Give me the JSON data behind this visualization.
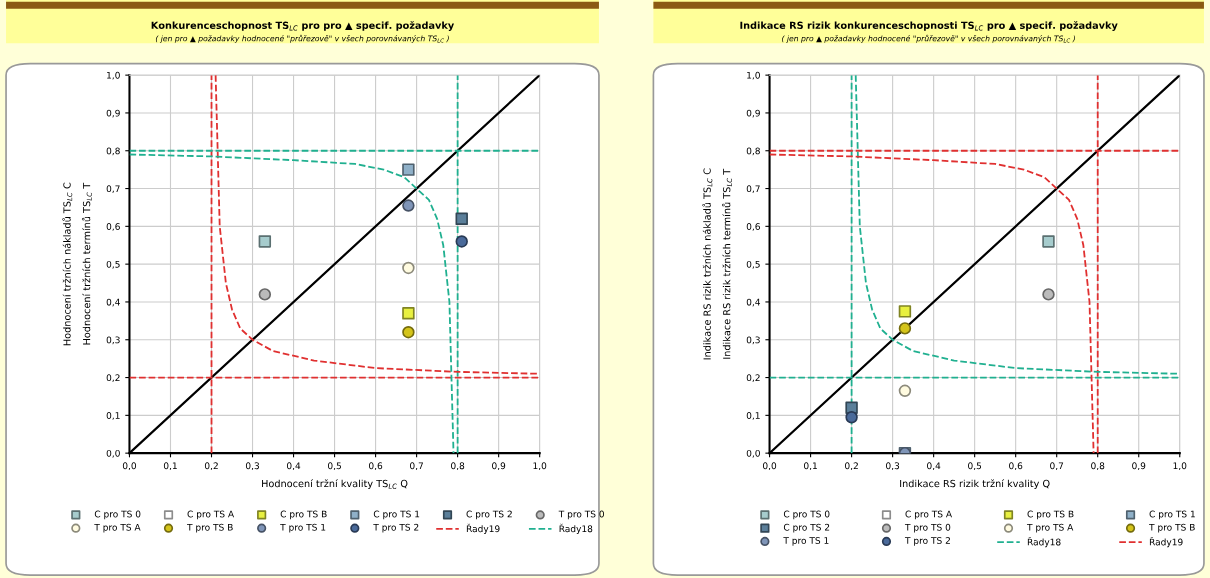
{
  "chart_data": [
    {
      "type": "scatter",
      "title": "Konkurenceschopnost TS$_{LC}$ pro pro ▲ specif. požadavky",
      "subtitle": "( jen pro ▲ požadavky hodnocené \"průřezově\" v všech porovnávaných TS$_{LC}$ )",
      "xlabel": "Hodnocení tržní kvality TS$_{LC}$ Q",
      "ylabel": "Hodnocení tržních nákladů TS$_{LC}$ C\nHodnocení tržních termínů TS$_{LC}$ T",
      "xlim": [
        0,
        1
      ],
      "ylim": [
        0,
        1
      ],
      "xticks": [
        {
          "value": 0,
          "label": "0,0"
        },
        {
          "value": 0.1,
          "label": "0,1"
        },
        {
          "value": 0.2,
          "label": "0,2"
        },
        {
          "value": 0.3,
          "label": "0,3"
        },
        {
          "value": 0.4,
          "label": "0,4"
        },
        {
          "value": 0.5,
          "label": "0,5"
        },
        {
          "value": 0.6,
          "label": "0,6"
        },
        {
          "value": 0.7,
          "label": "0,7"
        },
        {
          "value": 0.8,
          "label": "0,8"
        },
        {
          "value": 0.9,
          "label": "0,9"
        },
        {
          "value": 1,
          "label": "1,0"
        }
      ],
      "yticks": [
        {
          "value": 0,
          "label": "0,0"
        },
        {
          "value": 0.1,
          "label": "0,1"
        },
        {
          "value": 0.2,
          "label": "0,2"
        },
        {
          "value": 0.3,
          "label": "0,3"
        },
        {
          "value": 0.4,
          "label": "0,4"
        },
        {
          "value": 0.5,
          "label": "0,5"
        },
        {
          "value": 0.6,
          "label": "0,6"
        },
        {
          "value": 0.7,
          "label": "0,7"
        },
        {
          "value": 0.8,
          "label": "0,8"
        },
        {
          "value": 0.9,
          "label": "0,9"
        },
        {
          "value": 1,
          "label": "1,0"
        }
      ],
      "grid": true,
      "legend": "bottom",
      "series": [
        {
          "type": "line",
          "color": "#000000",
          "x": [
            0,
            1
          ],
          "values": [
            0,
            1
          ],
          "line_style": "solid",
          "marker": "none"
        },
        {
          "type": "line",
          "color": "#e03030",
          "x": [
            0.2,
            0.2
          ],
          "values": [
            0,
            1
          ],
          "line_style": "dashed",
          "marker": "none"
        },
        {
          "type": "line",
          "color": "#e03030",
          "x": [
            0,
            1
          ],
          "values": [
            0.2,
            0.2
          ],
          "line_style": "dashed",
          "marker": "none"
        },
        {
          "type": "line",
          "color": "#20b090",
          "x": [
            0.8,
            0.8
          ],
          "values": [
            0,
            1
          ],
          "line_style": "dashed",
          "marker": "none"
        },
        {
          "type": "line",
          "color": "#20b090",
          "x": [
            0,
            1
          ],
          "values": [
            0.8,
            0.8
          ],
          "line_style": "dashed",
          "marker": "none"
        },
        {
          "name": "C pro TS 0",
          "marker": "square",
          "color": "#a6cccd",
          "x": [
            0.33
          ],
          "values": [
            0.56
          ]
        },
        {
          "name": "C pro TS A",
          "marker": "square",
          "color": "#ffffff",
          "x": [
            null
          ],
          "values": [
            null
          ]
        },
        {
          "name": "C pro TS B",
          "marker": "square",
          "color": "#e8f040",
          "x": [
            0.68
          ],
          "values": [
            0.37
          ]
        },
        {
          "name": "C pro TS 1",
          "marker": "square",
          "color": "#8fb0c8",
          "x": [
            0.68
          ],
          "values": [
            0.75
          ]
        },
        {
          "name": "C pro TS 2",
          "marker": "square",
          "color": "#5b7f9a",
          "x": [
            0.81
          ],
          "values": [
            0.62
          ]
        },
        {
          "name": "T pro TS 0",
          "marker": "circle",
          "color": "#bbbbbb",
          "x": [
            0.33
          ],
          "values": [
            0.42
          ]
        },
        {
          "name": "T pro TS A",
          "marker": "circle",
          "color": "#fffbe0",
          "x": [
            0.68
          ],
          "values": [
            0.49
          ]
        },
        {
          "name": "T pro TS B",
          "marker": "circle",
          "color": "#d4c41a",
          "x": [
            0.68
          ],
          "values": [
            0.32
          ]
        },
        {
          "name": "T pro TS 1",
          "marker": "circle",
          "color": "#7f95b8",
          "x": [
            0.68
          ],
          "values": [
            0.655
          ]
        },
        {
          "name": "T pro TS 2",
          "marker": "circle",
          "color": "#4a6a9a",
          "x": [
            0.81
          ],
          "values": [
            0.56
          ]
        },
        {
          "name": "Řady19",
          "type": "line",
          "color": "#e03030",
          "line_style": "dashed",
          "marker": "none",
          "x": [
            0.21,
            0.215,
            0.22,
            0.235,
            0.25,
            0.27,
            0.3,
            0.35,
            0.45,
            0.6,
            0.8,
            1.0
          ],
          "values": [
            1.0,
            0.8,
            0.6,
            0.45,
            0.38,
            0.33,
            0.3,
            0.27,
            0.245,
            0.225,
            0.215,
            0.21
          ]
        },
        {
          "name": "Řady18",
          "type": "line",
          "color": "#20b090",
          "line_style": "dashed",
          "marker": "none",
          "x": [
            0,
            0.2,
            0.4,
            0.55,
            0.62,
            0.67,
            0.7,
            0.73,
            0.75,
            0.765,
            0.78,
            0.785,
            0.79
          ],
          "values": [
            0.79,
            0.785,
            0.775,
            0.765,
            0.75,
            0.73,
            0.7,
            0.67,
            0.62,
            0.55,
            0.4,
            0.2,
            0
          ]
        }
      ]
    },
    {
      "type": "scatter",
      "title": "Indikace RS rizik konkurenceschopnosti TS$_{LC}$ pro ▲ specif. požadavky",
      "subtitle": "( jen pro ▲ požadavky hodnocené \"průřezově\" v všech porovnávaných TS$_{LC}$ )",
      "xlabel": "Indikace RS rizik tržní kvality Q",
      "ylabel": "Indikace RS rizik tržních nákladů TS$_{LC}$ C\nIndikace RS rizik tržních termínů TS$_{LC}$ T",
      "xlim": [
        0,
        1
      ],
      "ylim": [
        0,
        1
      ],
      "xticks": [
        {
          "value": 0,
          "label": "0,0"
        },
        {
          "value": 0.1,
          "label": "0,1"
        },
        {
          "value": 0.2,
          "label": "0,2"
        },
        {
          "value": 0.3,
          "label": "0,3"
        },
        {
          "value": 0.4,
          "label": "0,4"
        },
        {
          "value": 0.5,
          "label": "0,5"
        },
        {
          "value": 0.6,
          "label": "0,6"
        },
        {
          "value": 0.7,
          "label": "0,7"
        },
        {
          "value": 0.8,
          "label": "0,8"
        },
        {
          "value": 0.9,
          "label": "0,9"
        },
        {
          "value": 1,
          "label": "1,0"
        }
      ],
      "yticks": [
        {
          "value": 0,
          "label": "0,0"
        },
        {
          "value": 0.1,
          "label": "0,1"
        },
        {
          "value": 0.2,
          "label": "0,2"
        },
        {
          "value": 0.3,
          "label": "0,3"
        },
        {
          "value": 0.4,
          "label": "0,4"
        },
        {
          "value": 0.5,
          "label": "0,5"
        },
        {
          "value": 0.6,
          "label": "0,6"
        },
        {
          "value": 0.7,
          "label": "0,7"
        },
        {
          "value": 0.8,
          "label": "0,8"
        },
        {
          "value": 0.9,
          "label": "0,9"
        },
        {
          "value": 1,
          "label": "1,0"
        }
      ],
      "grid": true,
      "legend": "bottom",
      "series": [
        {
          "type": "line",
          "color": "#000000",
          "x": [
            0,
            1
          ],
          "values": [
            0,
            1
          ],
          "line_style": "solid",
          "marker": "none"
        },
        {
          "type": "line",
          "color": "#20b090",
          "x": [
            0.2,
            0.2
          ],
          "values": [
            0,
            1
          ],
          "line_style": "dashed",
          "marker": "none"
        },
        {
          "type": "line",
          "color": "#20b090",
          "x": [
            0,
            1
          ],
          "values": [
            0.2,
            0.2
          ],
          "line_style": "dashed",
          "marker": "none"
        },
        {
          "type": "line",
          "color": "#e03030",
          "x": [
            0.8,
            0.8
          ],
          "values": [
            0,
            1
          ],
          "line_style": "dashed",
          "marker": "none"
        },
        {
          "type": "line",
          "color": "#e03030",
          "x": [
            0,
            1
          ],
          "values": [
            0.8,
            0.8
          ],
          "line_style": "dashed",
          "marker": "none"
        },
        {
          "name": "C pro TS 0",
          "marker": "square",
          "color": "#a6cccd",
          "x": [
            0.68
          ],
          "values": [
            0.56
          ]
        },
        {
          "name": "C pro TS A",
          "marker": "square",
          "color": "#ffffff",
          "x": [
            null
          ],
          "values": [
            null
          ]
        },
        {
          "name": "C pro TS B",
          "marker": "square",
          "color": "#e8f040",
          "x": [
            0.33
          ],
          "values": [
            0.375
          ]
        },
        {
          "name": "C pro TS 1",
          "marker": "square",
          "color": "#8fb0c8",
          "x": [
            0.33
          ],
          "values": [
            0.0
          ]
        },
        {
          "name": "C pro TS 2",
          "marker": "square",
          "color": "#5b7f9a",
          "x": [
            0.2
          ],
          "values": [
            0.12
          ]
        },
        {
          "name": "T pro TS 0",
          "marker": "circle",
          "color": "#bbbbbb",
          "x": [
            0.68
          ],
          "values": [
            0.42
          ]
        },
        {
          "name": "T pro TS A",
          "marker": "circle",
          "color": "#fffbe0",
          "x": [
            0.33
          ],
          "values": [
            0.165
          ]
        },
        {
          "name": "T pro TS B",
          "marker": "circle",
          "color": "#d4c41a",
          "x": [
            0.33
          ],
          "values": [
            0.33
          ]
        },
        {
          "name": "T pro TS 1",
          "marker": "circle",
          "color": "#7f95b8",
          "x": [
            0.33
          ],
          "values": [
            0.0
          ]
        },
        {
          "name": "T pro TS 2",
          "marker": "circle",
          "color": "#4a6a9a",
          "x": [
            0.2
          ],
          "values": [
            0.095
          ]
        },
        {
          "name": "Řady18",
          "type": "line",
          "color": "#20b090",
          "line_style": "dashed",
          "marker": "none",
          "x": [
            0.21,
            0.215,
            0.22,
            0.235,
            0.25,
            0.27,
            0.3,
            0.35,
            0.45,
            0.6,
            0.8,
            1.0
          ],
          "values": [
            1.0,
            0.8,
            0.6,
            0.45,
            0.38,
            0.33,
            0.3,
            0.27,
            0.245,
            0.225,
            0.215,
            0.21
          ]
        },
        {
          "name": "Řady19",
          "type": "line",
          "color": "#e03030",
          "line_style": "dashed",
          "marker": "none",
          "x": [
            0,
            0.2,
            0.4,
            0.55,
            0.62,
            0.67,
            0.7,
            0.73,
            0.75,
            0.765,
            0.78,
            0.785,
            0.79
          ],
          "values": [
            0.79,
            0.785,
            0.775,
            0.765,
            0.75,
            0.73,
            0.7,
            0.67,
            0.62,
            0.55,
            0.4,
            0.2,
            0
          ]
        }
      ]
    }
  ]
}
